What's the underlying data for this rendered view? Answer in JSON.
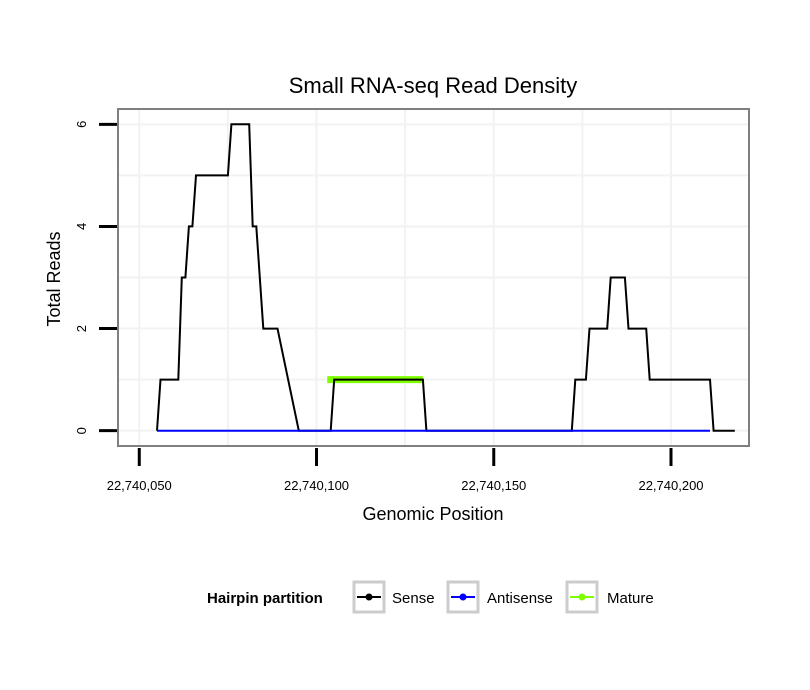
{
  "chart_data": {
    "type": "line",
    "title": "Small RNA-seq Read Density",
    "xlabel": "Genomic Position",
    "ylabel": "Total Reads",
    "xlim": [
      22740044,
      22740222
    ],
    "ylim": [
      -0.3,
      6.3
    ],
    "x_ticks": [
      22740050,
      22740100,
      22740150,
      22740200
    ],
    "x_tick_labels": [
      "22,740,050",
      "22,740,100",
      "22,740,150",
      "22,740,200"
    ],
    "y_ticks": [
      0,
      2,
      4,
      6
    ],
    "y_tick_labels": [
      "0",
      "2",
      "4",
      "6"
    ],
    "grid": true,
    "legend": {
      "position": "bottom",
      "title": "Hairpin partition",
      "entries": [
        {
          "label": "Sense",
          "color": "#000000"
        },
        {
          "label": "Antisense",
          "color": "#0000ff"
        },
        {
          "label": "Mature",
          "color": "#7fff00"
        }
      ]
    },
    "series": [
      {
        "name": "Sense",
        "color": "#000000",
        "x": [
          22740055,
          22740056,
          22740057,
          22740061,
          22740062,
          22740063,
          22740064,
          22740065,
          22740066,
          22740069,
          22740075,
          22740076,
          22740081,
          22740082,
          22740083,
          22740084,
          22740085,
          22740086,
          22740089,
          22740095,
          22740096,
          22740104,
          22740105,
          22740130,
          22740131,
          22740172,
          22740173,
          22740176,
          22740177,
          22740182,
          22740183,
          22740187,
          22740188,
          22740193,
          22740194,
          22740201,
          22740202,
          22740211,
          22740212,
          22740218
        ],
        "values": [
          0,
          1,
          1,
          1,
          3,
          3,
          4,
          4,
          5,
          5,
          5,
          6,
          6,
          4,
          4,
          3,
          2,
          2,
          2,
          0,
          0,
          0,
          1,
          1,
          0,
          0,
          1,
          1,
          2,
          2,
          3,
          3,
          2,
          2,
          1,
          1,
          1,
          1,
          0,
          0
        ]
      },
      {
        "name": "Antisense",
        "color": "#0000ff",
        "x": [
          22740055,
          22740211
        ],
        "values": [
          0,
          0
        ]
      },
      {
        "name": "Mature",
        "color": "#7fff00",
        "x": [
          22740103,
          22740130
        ],
        "values": [
          1,
          1
        ]
      }
    ]
  }
}
